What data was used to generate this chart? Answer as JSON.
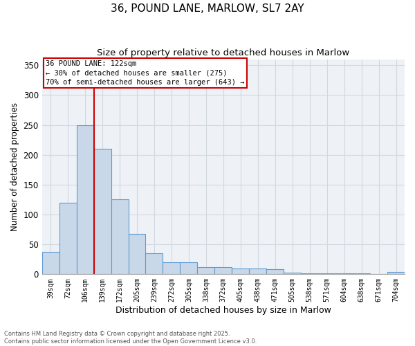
{
  "title_line1": "36, POUND LANE, MARLOW, SL7 2AY",
  "title_line2": "Size of property relative to detached houses in Marlow",
  "xlabel": "Distribution of detached houses by size in Marlow",
  "ylabel": "Number of detached properties",
  "categories": [
    "39sqm",
    "72sqm",
    "106sqm",
    "139sqm",
    "172sqm",
    "205sqm",
    "239sqm",
    "272sqm",
    "305sqm",
    "338sqm",
    "372sqm",
    "405sqm",
    "438sqm",
    "471sqm",
    "505sqm",
    "538sqm",
    "571sqm",
    "604sqm",
    "638sqm",
    "671sqm",
    "704sqm"
  ],
  "values": [
    38,
    120,
    250,
    210,
    125,
    67,
    35,
    20,
    20,
    12,
    12,
    10,
    10,
    8,
    3,
    2,
    1,
    1,
    1,
    0,
    4
  ],
  "bar_color": "#c8d8e8",
  "bar_edge_color": "#5b9bd5",
  "grid_color": "#d0d8e0",
  "background_color": "#eef2f7",
  "vline_x": 2.5,
  "vline_color": "#cc0000",
  "annotation_text": "36 POUND LANE: 122sqm\n← 30% of detached houses are smaller (275)\n70% of semi-detached houses are larger (643) →",
  "footnote": "Contains HM Land Registry data © Crown copyright and database right 2025.\nContains public sector information licensed under the Open Government Licence v3.0.",
  "ylim": [
    0,
    360
  ],
  "yticks": [
    0,
    50,
    100,
    150,
    200,
    250,
    300,
    350
  ]
}
